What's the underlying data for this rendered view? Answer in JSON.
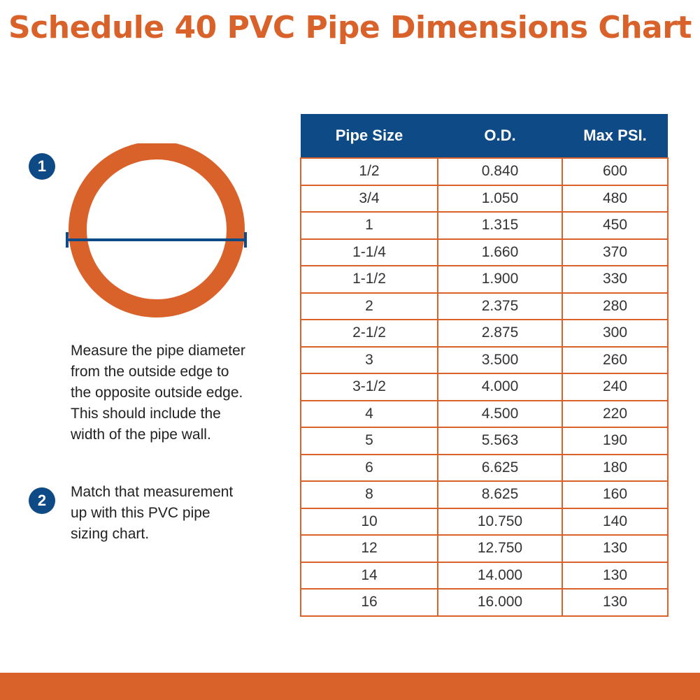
{
  "colors": {
    "accent": "#D9622B",
    "navy": "#0E4A86"
  },
  "title": "Schedule 40 PVC Pipe Dimensions Chart",
  "steps": [
    {
      "number": "1",
      "text": "Measure the pipe diameter\nfrom the outside edge to\nthe opposite outside edge.\nThis  should include the\nwidth of the pipe wall."
    },
    {
      "number": "2",
      "text": "Match that measurement\nup with this PVC pipe\nsizing chart."
    }
  ],
  "table": {
    "headers": [
      "Pipe Size",
      "O.D.",
      "Max PSI."
    ],
    "rows": [
      [
        "1/2",
        "0.840",
        "600"
      ],
      [
        "3/4",
        "1.050",
        "480"
      ],
      [
        "1",
        "1.315",
        "450"
      ],
      [
        "1-1/4",
        "1.660",
        "370"
      ],
      [
        "1-1/2",
        "1.900",
        "330"
      ],
      [
        "2",
        "2.375",
        "280"
      ],
      [
        "2-1/2",
        "2.875",
        "300"
      ],
      [
        "3",
        "3.500",
        "260"
      ],
      [
        "3-1/2",
        "4.000",
        "240"
      ],
      [
        "4",
        "4.500",
        "220"
      ],
      [
        "5",
        "5.563",
        "190"
      ],
      [
        "6",
        "6.625",
        "180"
      ],
      [
        "8",
        "8.625",
        "160"
      ],
      [
        "10",
        "10.750",
        "140"
      ],
      [
        "12",
        "12.750",
        "130"
      ],
      [
        "14",
        "14.000",
        "130"
      ],
      [
        "16",
        "16.000",
        "130"
      ]
    ]
  }
}
